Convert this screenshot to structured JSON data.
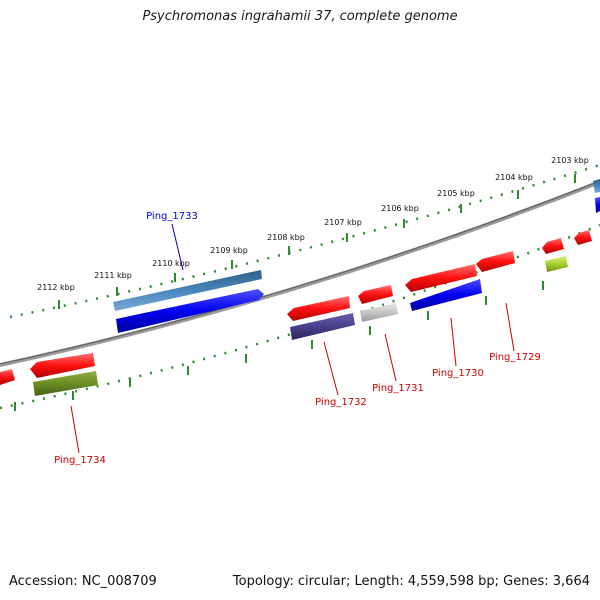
{
  "title": "Psychromonas ingrahamii 37, complete genome",
  "accession": "Accession: NC_008709",
  "summary": "Topology: circular; Length: 4,559,598 bp; Genes: 3,664",
  "colors": {
    "fwd_ticks": "#2e8b2e",
    "rev_ticks": "#2e8b2e",
    "backbone": "#808080",
    "red": "#ff1a1a",
    "blue": "#0000ee",
    "steel": "#4a82b4",
    "olive": "#6b8e23",
    "indigo": "#4b3f8f",
    "gray": "#c8c8c8",
    "lime": "#9acd32",
    "label_red": "#cc0000",
    "label_blue": "#0000cc"
  },
  "scale_labels": [
    "2103 kbp",
    "2104 kbp",
    "2105 kbp",
    "2106 kbp",
    "2107 kbp",
    "2108 kbp",
    "2109 kbp",
    "2110 kbp",
    "2111 kbp",
    "2112 kbp"
  ],
  "genes": [
    {
      "name": "Ping_1733",
      "color": "label_blue"
    },
    {
      "name": "Ping_1732",
      "color": "label_red"
    },
    {
      "name": "Ping_1731",
      "color": "label_red"
    },
    {
      "name": "Ping_1730",
      "color": "label_red"
    },
    {
      "name": "Ping_1729",
      "color": "label_red"
    },
    {
      "name": "Ping_1734",
      "color": "label_red"
    }
  ]
}
